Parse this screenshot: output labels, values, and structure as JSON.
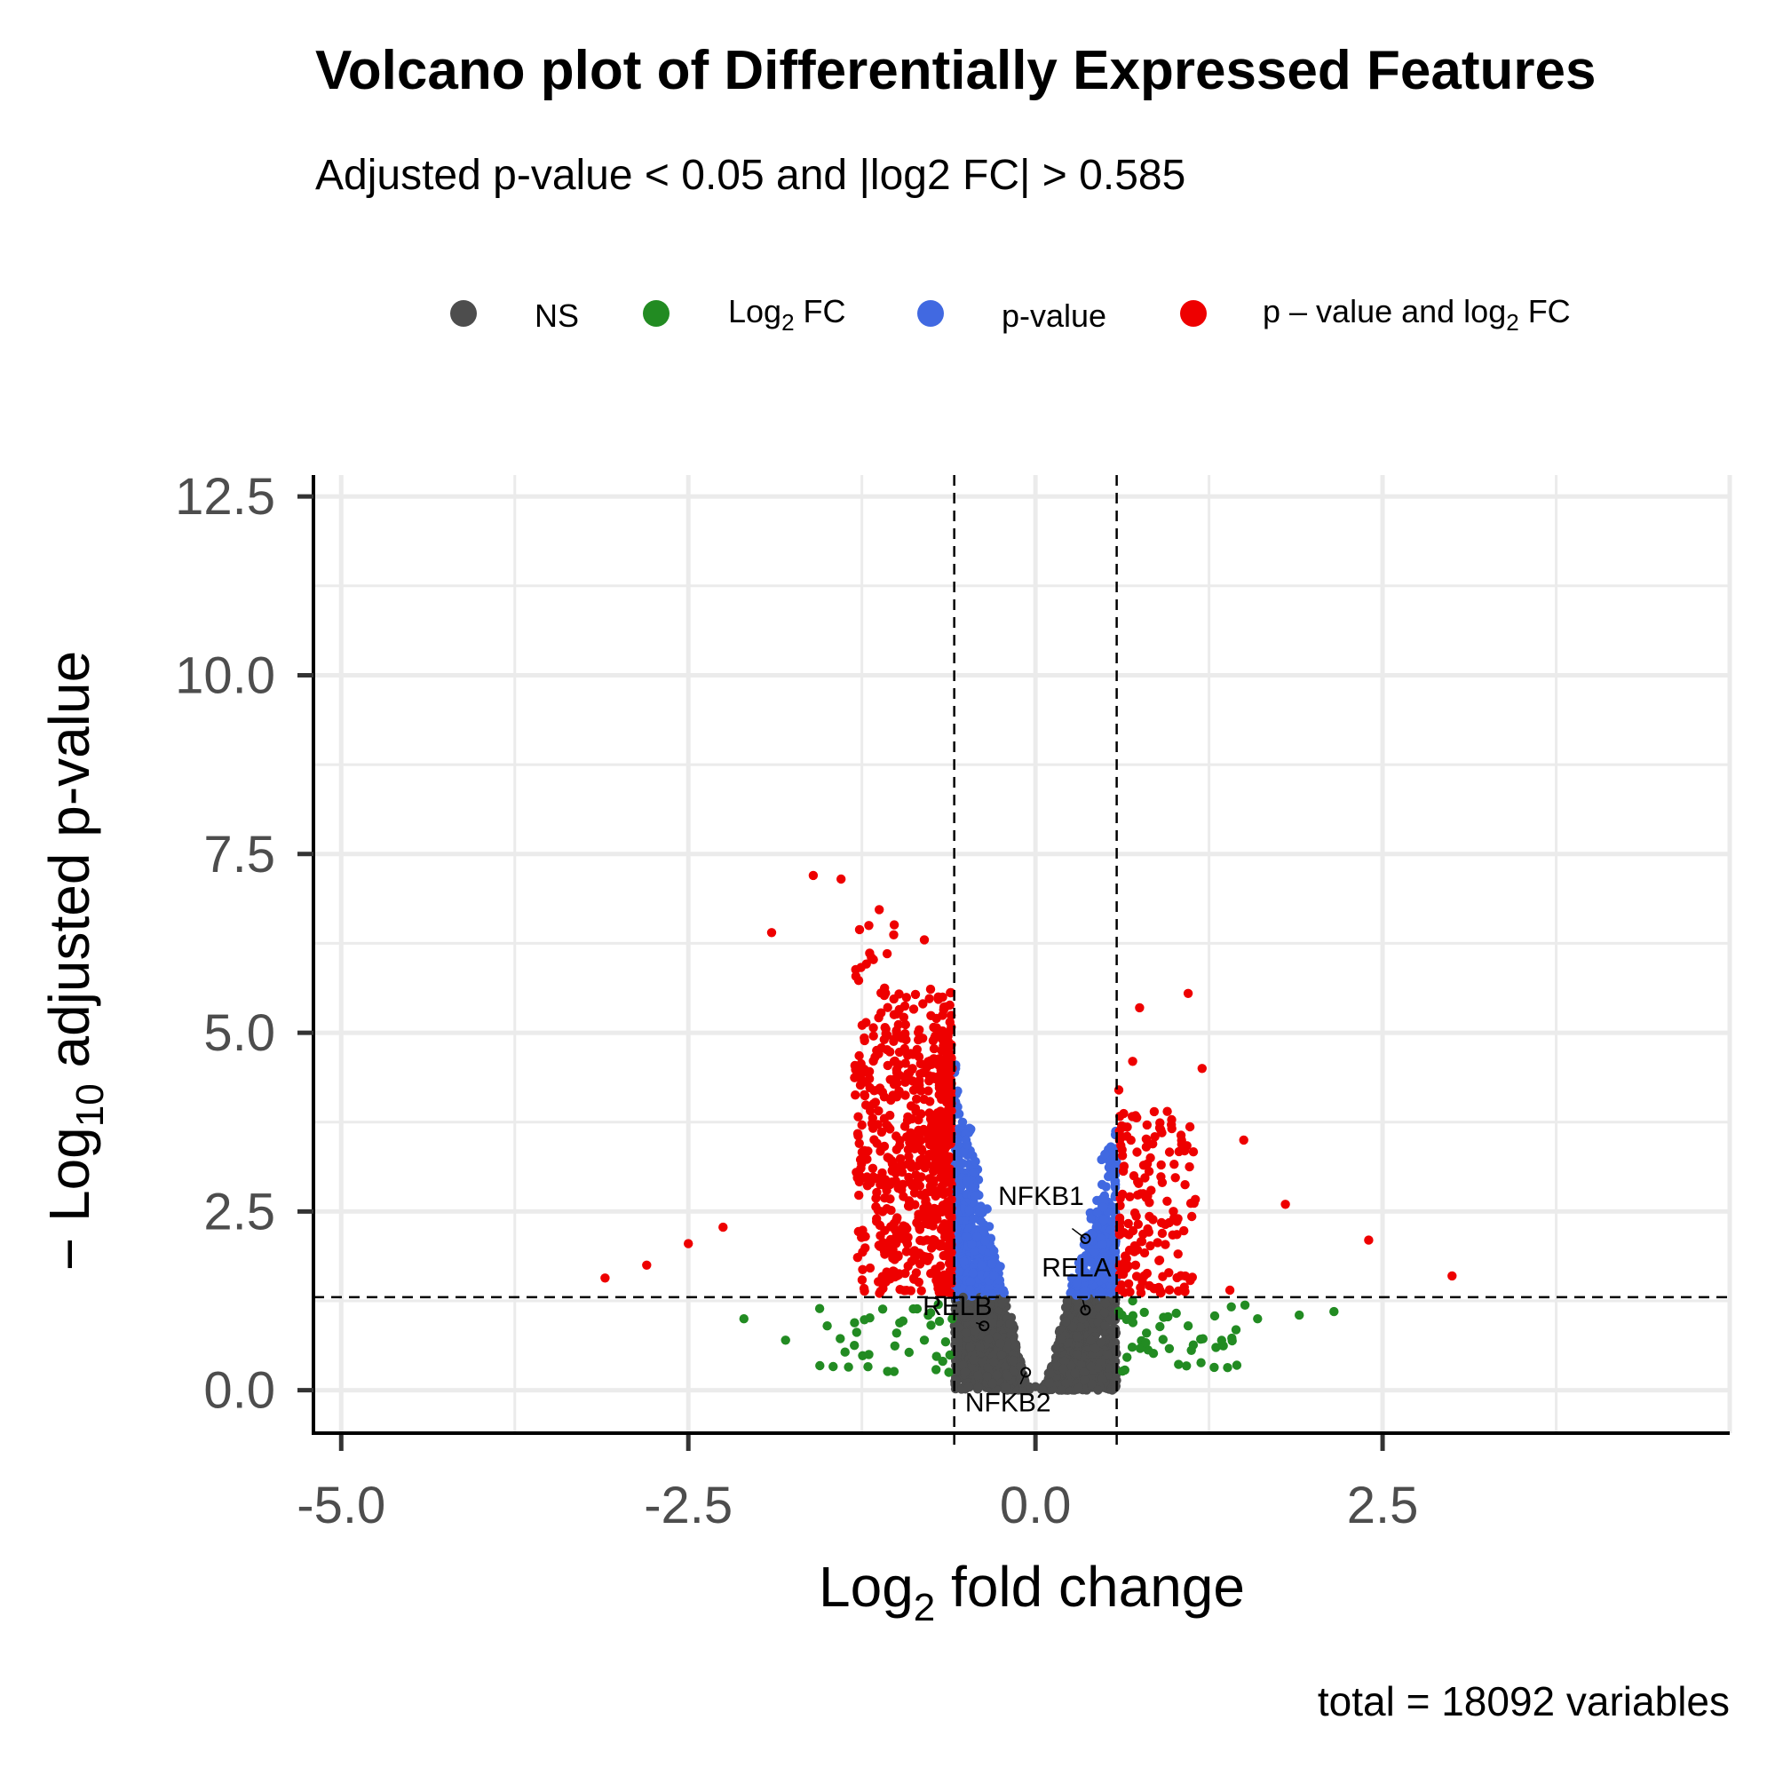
{
  "chart_data": {
    "type": "scatter",
    "title": "Volcano plot of Differentially Expressed Features",
    "subtitle": "Adjusted p-value < 0.05 and |log2 FC| > 0.585",
    "xlabel": "Log2 fold change",
    "xlabel_main": "Log",
    "xlabel_sub": "2",
    "xlabel_rest": " fold change",
    "ylabel": "-Log10 adjusted p-value",
    "ylabel_main": "− Log",
    "ylabel_sub": "10",
    "ylabel_rest": " adjusted p-value",
    "caption": "total = 18092 variables",
    "xlim": [
      -5.2,
      5.0
    ],
    "ylim": [
      -0.6,
      12.8
    ],
    "x_ticks": [
      -5.0,
      -2.5,
      0.0,
      2.5
    ],
    "x_tick_labels": [
      "-5.0",
      "-2.5",
      "0.0",
      "2.5"
    ],
    "y_ticks": [
      0.0,
      2.5,
      5.0,
      7.5,
      10.0,
      12.5
    ],
    "y_tick_labels": [
      "0.0",
      "2.5",
      "5.0",
      "7.5",
      "10.0",
      "12.5"
    ],
    "grid": true,
    "legend_position": "top",
    "fc_cutoff": 0.585,
    "p_cutoff_line": 1.301,
    "total_variables": 18092,
    "legend": [
      {
        "key": "ns",
        "label": "NS",
        "color": "#4d4d4d"
      },
      {
        "key": "fc",
        "label": "Log2 FC",
        "label_main": "Log",
        "label_sub": "2",
        "label_rest": " FC",
        "color": "#228b22"
      },
      {
        "key": "p",
        "label": "p-value",
        "color": "#4169e1"
      },
      {
        "key": "pfc",
        "label": "p – value and log2 FC",
        "label_main": "p – value and log",
        "label_sub": "2",
        "label_rest": " FC",
        "color": "#ee0000"
      }
    ],
    "labeled_genes": [
      {
        "name": "NFKB1",
        "x": 0.36,
        "y": 2.12
      },
      {
        "name": "RELA",
        "x": 0.36,
        "y": 1.12
      },
      {
        "name": "RELB",
        "x": -0.37,
        "y": 0.9
      },
      {
        "name": "NFKB2",
        "x": -0.07,
        "y": 0.25
      }
    ],
    "series": [
      {
        "name": "NS",
        "color": "#4d4d4d",
        "points": [
          [
            -0.7,
            1.2
          ],
          [
            -0.6,
            1.0
          ],
          [
            -0.5,
            0.8
          ],
          [
            -0.4,
            0.6
          ],
          [
            -0.3,
            0.4
          ],
          [
            -0.2,
            0.2
          ],
          [
            -0.1,
            0.1
          ],
          [
            0.0,
            0.05
          ],
          [
            0.1,
            0.1
          ],
          [
            0.2,
            0.3
          ],
          [
            0.3,
            0.5
          ],
          [
            0.4,
            0.7
          ],
          [
            0.5,
            0.9
          ],
          [
            0.6,
            1.1
          ],
          [
            0.7,
            1.25
          ],
          [
            -0.8,
            0.7
          ],
          [
            0.8,
            0.8
          ]
        ]
      },
      {
        "name": "Log2 FC",
        "color": "#228b22",
        "points": [
          [
            -2.1,
            1.0
          ],
          [
            -1.8,
            0.7
          ],
          [
            -1.5,
            0.9
          ],
          [
            -1.2,
            0.5
          ],
          [
            -1.0,
            0.8
          ],
          [
            1.1,
            0.9
          ],
          [
            1.3,
            0.6
          ],
          [
            1.6,
            1.0
          ],
          [
            1.9,
            1.05
          ],
          [
            2.15,
            1.1
          ],
          [
            1.45,
            0.35
          ]
        ]
      },
      {
        "name": "p-value",
        "color": "#4169e1",
        "points": [
          [
            -0.8,
            6.3
          ],
          [
            -0.7,
            5.5
          ],
          [
            -0.6,
            4.5
          ],
          [
            -0.5,
            3.5
          ],
          [
            -0.4,
            2.5
          ],
          [
            -0.3,
            1.6
          ],
          [
            0.3,
            1.5
          ],
          [
            0.4,
            2.4
          ],
          [
            0.5,
            3.3
          ],
          [
            0.6,
            4.2
          ],
          [
            0.7,
            4.6
          ],
          [
            0.75,
            5.35
          ]
        ]
      },
      {
        "name": "p - value and log2 FC",
        "color": "#ee0000",
        "points": [
          [
            -3.1,
            1.57
          ],
          [
            -2.8,
            1.75
          ],
          [
            -2.5,
            2.05
          ],
          [
            -2.25,
            2.28
          ],
          [
            -1.9,
            6.4
          ],
          [
            -1.6,
            7.2
          ],
          [
            -1.4,
            7.15
          ],
          [
            -1.2,
            6.5
          ],
          [
            -1.0,
            5.0
          ],
          [
            -1.1,
            2.5
          ],
          [
            1.1,
            5.55
          ],
          [
            1.2,
            4.5
          ],
          [
            1.5,
            3.5
          ],
          [
            1.8,
            2.6
          ],
          [
            2.4,
            2.1
          ],
          [
            3.0,
            1.6
          ],
          [
            1.4,
            1.4
          ]
        ]
      }
    ]
  }
}
